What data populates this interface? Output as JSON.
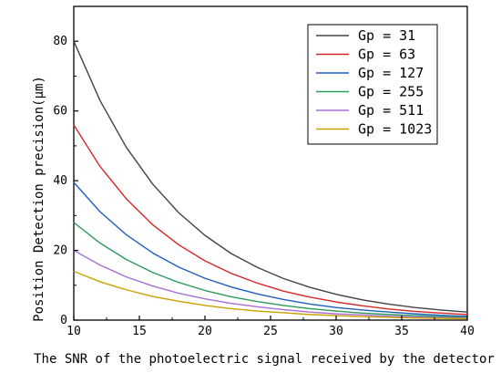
{
  "chart_data": {
    "type": "line",
    "xlabel": "The SNR of the photoelectric signal received by the detector",
    "ylabel": "Position Detection precision(μm)",
    "xlim": [
      10,
      40
    ],
    "ylim": [
      0,
      90
    ],
    "xticks": [
      10,
      15,
      20,
      25,
      30,
      35,
      40
    ],
    "yticks": [
      0,
      20,
      40,
      60,
      80
    ],
    "grid": false,
    "legend_position": "top-right",
    "x": [
      10,
      12,
      14,
      16,
      18,
      20,
      22,
      24,
      26,
      28,
      30,
      32,
      34,
      36,
      38,
      40
    ],
    "series": [
      {
        "name": "Gp = 31",
        "color": "#444444",
        "values": [
          80,
          63,
          49.6,
          39.1,
          30.8,
          24.3,
          19.1,
          15.1,
          11.9,
          9.4,
          7.4,
          5.8,
          4.6,
          3.6,
          2.9,
          2.3
        ]
      },
      {
        "name": "Gp = 63",
        "color": "#d62728",
        "values": [
          56,
          44.1,
          34.8,
          27.4,
          21.6,
          17.0,
          13.4,
          10.6,
          8.3,
          6.6,
          5.2,
          4.1,
          3.2,
          2.5,
          2.0,
          1.6
        ]
      },
      {
        "name": "Gp = 127",
        "color": "#1f5fbf",
        "values": [
          39.5,
          31.1,
          24.5,
          19.3,
          15.2,
          12.0,
          9.5,
          7.5,
          5.9,
          4.6,
          3.6,
          2.9,
          2.3,
          1.8,
          1.4,
          1.1
        ]
      },
      {
        "name": "Gp = 255",
        "color": "#2e9a5a",
        "values": [
          28,
          22.1,
          17.4,
          13.7,
          10.8,
          8.5,
          6.7,
          5.3,
          4.2,
          3.3,
          2.6,
          2.0,
          1.6,
          1.3,
          1.0,
          0.8
        ]
      },
      {
        "name": "Gp = 511",
        "color": "#a86fd6",
        "values": [
          20,
          15.8,
          12.4,
          9.8,
          7.7,
          6.1,
          4.8,
          3.8,
          3.0,
          2.3,
          1.8,
          1.5,
          1.1,
          0.9,
          0.7,
          0.6
        ]
      },
      {
        "name": "Gp = 1023",
        "color": "#c9a100",
        "values": [
          14,
          11.0,
          8.7,
          6.8,
          5.4,
          4.2,
          3.3,
          2.6,
          2.1,
          1.6,
          1.3,
          1.0,
          0.8,
          0.6,
          0.5,
          0.4
        ]
      }
    ]
  }
}
